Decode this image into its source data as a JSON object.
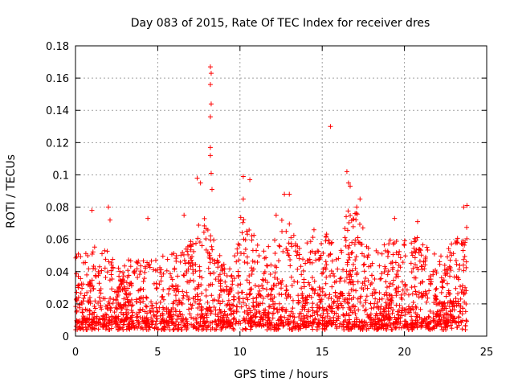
{
  "chart_data": {
    "type": "scatter",
    "title": "Day 083 of 2015, Rate Of TEC Index for receiver dres",
    "xlabel": "GPS time / hours",
    "ylabel": "ROTI / TECUs",
    "xlim": [
      0,
      25
    ],
    "ylim": [
      0,
      0.18
    ],
    "x_ticks": [
      0,
      5,
      10,
      15,
      20,
      25
    ],
    "y_ticks": [
      0,
      0.02,
      0.04,
      0.06,
      0.08,
      0.1,
      0.12,
      0.14,
      0.16,
      0.18
    ],
    "x_tick_labels": [
      "0",
      "5",
      "10",
      "15",
      "20",
      "25"
    ],
    "y_tick_labels": [
      "0",
      "0.02",
      "0.04",
      "0.06",
      "0.08",
      "0.1",
      "0.12",
      "0.14",
      "0.16",
      "0.18"
    ],
    "grid": true,
    "marker": "+",
    "color": "#ff0000",
    "series": [
      {
        "name": "ROTI",
        "x_range": [
          0,
          23.8
        ],
        "envelope_hours": [
          0,
          0.5,
          1,
          1.5,
          2,
          2.5,
          3,
          3.5,
          4,
          4.5,
          5,
          5.5,
          6,
          6.5,
          7,
          7.5,
          8,
          8.5,
          9,
          9.5,
          10,
          10.5,
          11,
          11.5,
          12,
          12.5,
          13,
          13.5,
          14,
          14.5,
          15,
          15.5,
          16,
          16.5,
          17,
          17.5,
          18,
          18.5,
          19,
          19.5,
          20,
          20.5,
          21,
          21.5,
          22,
          22.5,
          23,
          23.5,
          23.8
        ],
        "envelope_roti": [
          0.055,
          0.05,
          0.058,
          0.05,
          0.06,
          0.04,
          0.045,
          0.05,
          0.05,
          0.05,
          0.045,
          0.05,
          0.05,
          0.055,
          0.06,
          0.07,
          0.08,
          0.06,
          0.05,
          0.04,
          0.08,
          0.07,
          0.06,
          0.05,
          0.06,
          0.07,
          0.07,
          0.06,
          0.06,
          0.065,
          0.06,
          0.07,
          0.05,
          0.08,
          0.08,
          0.07,
          0.05,
          0.055,
          0.06,
          0.06,
          0.06,
          0.065,
          0.06,
          0.055,
          0.05,
          0.055,
          0.06,
          0.07,
          0.075
        ],
        "peaks": [
          {
            "x": 1.0,
            "y": 0.078
          },
          {
            "x": 2.0,
            "y": 0.08
          },
          {
            "x": 2.1,
            "y": 0.072
          },
          {
            "x": 4.4,
            "y": 0.073
          },
          {
            "x": 6.6,
            "y": 0.075
          },
          {
            "x": 7.4,
            "y": 0.098
          },
          {
            "x": 7.6,
            "y": 0.095
          },
          {
            "x": 8.2,
            "y": 0.167
          },
          {
            "x": 8.25,
            "y": 0.163
          },
          {
            "x": 8.2,
            "y": 0.156
          },
          {
            "x": 8.25,
            "y": 0.144
          },
          {
            "x": 8.2,
            "y": 0.136
          },
          {
            "x": 8.2,
            "y": 0.117
          },
          {
            "x": 8.2,
            "y": 0.112
          },
          {
            "x": 8.25,
            "y": 0.101
          },
          {
            "x": 8.3,
            "y": 0.091
          },
          {
            "x": 10.2,
            "y": 0.099
          },
          {
            "x": 10.6,
            "y": 0.097
          },
          {
            "x": 10.2,
            "y": 0.085
          },
          {
            "x": 12.2,
            "y": 0.075
          },
          {
            "x": 12.7,
            "y": 0.088
          },
          {
            "x": 13.0,
            "y": 0.088
          },
          {
            "x": 15.5,
            "y": 0.13
          },
          {
            "x": 16.5,
            "y": 0.102
          },
          {
            "x": 16.6,
            "y": 0.095
          },
          {
            "x": 16.7,
            "y": 0.093
          },
          {
            "x": 17.1,
            "y": 0.08
          },
          {
            "x": 17.3,
            "y": 0.085
          },
          {
            "x": 19.4,
            "y": 0.073
          },
          {
            "x": 20.8,
            "y": 0.071
          },
          {
            "x": 23.6,
            "y": 0.08
          },
          {
            "x": 23.8,
            "y": 0.081
          }
        ]
      }
    ]
  }
}
